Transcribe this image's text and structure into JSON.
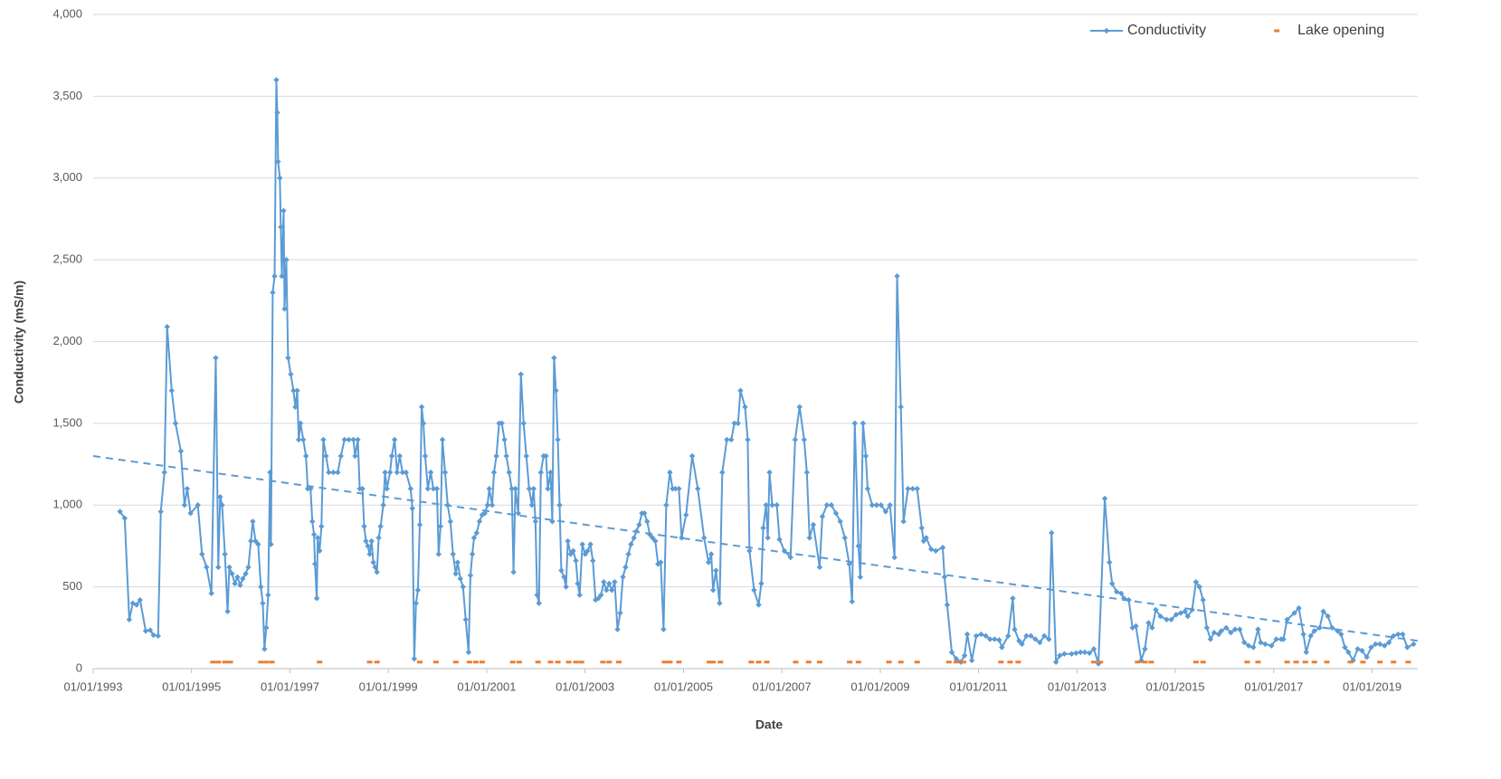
{
  "chart_data": {
    "type": "line",
    "x_label": "Date",
    "y_label": "Conductivity (mS/m)",
    "xlim": [
      "01/01/1993",
      "06/12/2019"
    ],
    "xticks": [
      "01/01/1993",
      "01/01/1995",
      "01/01/1997",
      "01/01/1999",
      "01/01/2001",
      "01/01/2003",
      "01/01/2005",
      "01/01/2007",
      "01/01/2009",
      "01/01/2011",
      "01/01/2013",
      "01/01/2015",
      "01/01/2017",
      "01/01/2019"
    ],
    "ylim": [
      0,
      4000
    ],
    "yticks": [
      0,
      500,
      {
        "value": 1000,
        "label": "1,000"
      },
      {
        "value": 1500,
        "label": "1,500"
      },
      {
        "value": 2000,
        "label": "2,000"
      },
      {
        "value": 2500,
        "label": "2,500"
      },
      {
        "value": 3000,
        "label": "3,000"
      },
      {
        "value": 3500,
        "label": "3,500"
      },
      {
        "value": 4000,
        "label": "4,000"
      }
    ],
    "grid": true,
    "legend": "top-right",
    "series": [
      {
        "name": "Conductivity",
        "color": "#5b9bd5",
        "line": true,
        "marker": "diamond",
        "x": [
          "19/07/1993",
          "23/08/1993",
          "26/09/1993",
          "22/10/1993",
          "19/11/1993",
          "15/12/1993",
          "26/01/1994",
          "28/02/1994",
          "25/03/1994",
          "28/04/1994",
          "18/05/1994",
          "14/06/1994",
          "04/07/1994",
          "07/08/1994",
          "04/09/1994",
          "14/10/1994",
          "10/11/1994",
          "30/11/1994",
          "25/12/1994",
          "17/02/1995",
          "20/03/1995",
          "23/04/1995",
          "29/05/1995",
          "30/06/1995",
          "19/07/1995",
          "02/08/1995",
          "16/08/1995",
          "06/09/1995",
          "26/09/1995",
          "09/10/1995",
          "29/10/1995",
          "19/11/1995",
          "08/12/1995",
          "28/12/1995",
          "17/01/1996",
          "07/02/1996",
          "27/02/1996",
          "17/03/1996",
          "31/03/1996",
          "20/04/1996",
          "10/05/1996",
          "30/05/1996",
          "13/06/1996",
          "26/06/1996",
          "09/07/1996",
          "23/07/1996",
          "06/08/1996",
          "13/08/1996",
          "26/08/1996",
          "09/09/1996",
          "22/09/1996",
          "29/09/1996",
          "05/10/1996",
          "18/10/1996",
          "25/10/1996",
          "02/11/1996",
          "15/11/1996",
          "22/11/1996",
          "05/12/1996",
          "18/12/1996",
          "07/01/1997",
          "27/01/1997",
          "10/02/1997",
          "24/02/1997",
          "07/03/1997",
          "20/03/1997",
          "10/04/1997",
          "30/04/1997",
          "13/05/1997",
          "03/06/1997",
          "16/06/1997",
          "29/06/1997",
          "06/07/1997",
          "19/07/1997",
          "26/07/1997",
          "09/08/1997",
          "23/08/1997",
          "06/09/1997",
          "26/09/1997",
          "16/10/1997",
          "19/11/1997",
          "22/12/1997",
          "14/01/1998",
          "10/02/1998",
          "14/03/1998",
          "17/04/1998",
          "30/04/1998",
          "20/05/1998",
          "03/06/1998",
          "23/06/1998",
          "06/07/1998",
          "19/07/1998",
          "02/08/1998",
          "16/08/1998",
          "30/08/1998",
          "12/09/1998",
          "26/09/1998",
          "09/10/1998",
          "22/10/1998",
          "05/11/1998",
          "25/11/1998",
          "08/12/1998",
          "22/12/1998",
          "14/01/1999",
          "27/01/1999",
          "17/02/1999",
          "07/03/1999",
          "27/03/1999",
          "17/04/1999",
          "13/05/1999",
          "16/06/1999",
          "29/06/1999",
          "13/07/1999",
          "26/07/1999",
          "09/08/1999",
          "23/08/1999",
          "06/09/1999",
          "19/09/1999",
          "02/10/1999",
          "22/10/1999",
          "12/11/1999",
          "02/12/1999",
          "28/12/1999",
          "10/01/2000",
          "24/01/2000",
          "07/02/2000",
          "27/02/2000",
          "17/03/2000",
          "06/04/2000",
          "26/04/2000",
          "16/05/2000",
          "30/05/2000",
          "19/06/2000",
          "09/07/2000",
          "29/07/2000",
          "19/08/2000",
          "02/09/2000",
          "16/09/2000",
          "29/09/2000",
          "18/10/2000",
          "08/11/2000",
          "28/11/2000",
          "18/12/2000",
          "07/01/2001",
          "20/01/2001",
          "10/02/2001",
          "24/02/2001",
          "14/03/2001",
          "03/04/2001",
          "23/04/2001",
          "13/05/2001",
          "27/05/2001",
          "16/06/2001",
          "06/07/2001",
          "19/07/2001",
          "02/08/2001",
          "23/08/2001",
          "12/09/2001",
          "02/10/2001",
          "22/10/2001",
          "12/11/2001",
          "02/12/2001",
          "15/12/2001",
          "29/12/2001",
          "10/01/2002",
          "24/01/2002",
          "07/02/2002",
          "27/02/2002",
          "17/03/2002",
          "31/03/2002",
          "20/04/2002",
          "03/05/2002",
          "16/05/2002",
          "30/05/2002",
          "13/06/2002",
          "26/06/2002",
          "09/07/2002",
          "29/07/2002",
          "13/08/2002",
          "26/08/2002",
          "16/09/2002",
          "05/10/2002",
          "25/10/2002",
          "08/11/2002",
          "22/11/2002",
          "12/12/2002",
          "02/01/2003",
          "20/01/2003",
          "10/02/2003",
          "28/02/2003",
          "20/03/2003",
          "10/04/2003",
          "30/04/2003",
          "20/05/2003",
          "09/06/2003",
          "29/06/2003",
          "19/07/2003",
          "09/08/2003",
          "30/08/2003",
          "19/09/2003",
          "09/10/2003",
          "29/10/2003",
          "19/11/2003",
          "08/12/2003",
          "30/12/2003",
          "17/01/2004",
          "07/02/2004",
          "27/02/2004",
          "17/03/2004",
          "06/04/2004",
          "26/04/2004",
          "16/05/2004",
          "06/06/2004",
          "26/06/2004",
          "16/07/2004",
          "06/08/2004",
          "26/08/2004",
          "22/09/2004",
          "12/10/2004",
          "02/11/2004",
          "28/11/2004",
          "18/12/2004",
          "20/01/2005",
          "07/03/2005",
          "17/04/2005",
          "03/06/2005",
          "06/07/2005",
          "26/07/2005",
          "09/08/2005",
          "30/08/2005",
          "26/09/2005",
          "16/10/2005",
          "19/11/2005",
          "22/12/2005",
          "14/01/2006",
          "10/02/2006",
          "28/02/2006",
          "03/04/2006",
          "23/04/2006",
          "06/05/2006",
          "09/06/2006",
          "13/07/2006",
          "02/08/2006",
          "16/08/2006",
          "06/09/2006",
          "19/09/2006",
          "02/10/2006",
          "22/10/2006",
          "25/11/2006",
          "15/12/2006",
          "20/01/2007",
          "07/03/2007",
          "10/04/2007",
          "13/05/2007",
          "16/06/2007",
          "06/07/2007",
          "26/07/2007",
          "23/08/2007",
          "09/10/2007",
          "29/10/2007",
          "02/12/2007",
          "04/01/2008",
          "07/02/2008",
          "10/03/2008",
          "13/04/2008",
          "16/05/2008",
          "06/06/2008",
          "26/06/2008",
          "23/07/2008",
          "06/08/2008",
          "26/08/2008",
          "16/09/2008",
          "29/09/2008",
          "02/11/2008",
          "05/12/2008",
          "07/01/2009",
          "10/02/2009",
          "14/03/2009",
          "17/04/2009",
          "06/05/2009",
          "03/06/2009",
          "23/06/2009",
          "26/07/2009",
          "30/08/2009",
          "02/10/2009",
          "05/11/2009",
          "19/11/2009",
          "08/12/2009",
          "14/01/2010",
          "17/02/2010",
          "10/04/2010",
          "23/04/2010",
          "13/05/2010",
          "16/06/2010",
          "19/07/2010",
          "23/08/2010",
          "19/09/2010",
          "09/10/2010",
          "12/11/2010",
          "15/12/2010",
          "20/01/2011",
          "24/02/2011",
          "27/03/2011",
          "30/04/2011",
          "03/06/2011",
          "23/06/2011",
          "09/08/2011",
          "12/09/2011",
          "26/09/2011",
          "29/10/2011",
          "19/11/2011",
          "22/12/2011",
          "24/01/2012",
          "27/02/2012",
          "31/03/2012",
          "03/05/2012",
          "06/06/2012",
          "26/06/2012",
          "29/07/2012",
          "26/08/2012",
          "29/09/2012",
          "22/11/2012",
          "25/12/2012",
          "27/01/2013",
          "28/02/2013",
          "03/04/2013",
          "06/05/2013",
          "09/06/2013",
          "26/07/2013",
          "30/08/2013",
          "19/09/2013",
          "22/10/2013",
          "25/11/2013",
          "15/12/2013",
          "20/01/2014",
          "17/02/2014",
          "14/03/2014",
          "23/04/2014",
          "20/05/2014",
          "16/06/2014",
          "13/07/2014",
          "09/08/2014",
          "12/09/2014",
          "29/10/2014",
          "02/12/2014",
          "07/01/2015",
          "10/02/2015",
          "14/03/2015",
          "03/04/2015",
          "06/05/2015",
          "03/06/2015",
          "29/06/2015",
          "26/07/2015",
          "23/08/2015",
          "19/09/2015",
          "16/10/2015",
          "19/11/2015",
          "08/12/2015",
          "14/01/2016",
          "17/02/2016",
          "20/03/2016",
          "23/04/2016",
          "27/05/2016",
          "29/06/2016",
          "02/08/2016",
          "06/09/2016",
          "26/09/2016",
          "29/10/2016",
          "15/12/2016",
          "20/01/2017",
          "24/02/2017",
          "14/03/2017",
          "10/04/2017",
          "03/06/2017",
          "06/07/2017",
          "09/08/2017",
          "30/08/2017",
          "02/10/2017",
          "29/10/2017",
          "08/12/2017",
          "04/01/2018",
          "07/02/2018",
          "10/03/2018",
          "20/04/2018",
          "16/05/2018",
          "13/06/2018",
          "09/07/2018",
          "13/08/2018",
          "16/09/2018",
          "18/10/2018",
          "22/11/2018",
          "25/12/2018",
          "27/01/2019",
          "28/02/2019",
          "03/04/2019",
          "06/05/2019",
          "09/06/2019",
          "13/07/2019",
          "16/08/2019",
          "19/09/2019",
          "05/11/2019"
        ],
        "values": [
          960,
          920,
          300,
          400,
          390,
          420,
          230,
          235,
          205,
          200,
          960,
          1200,
          2090,
          1700,
          1500,
          1330,
          1000,
          1100,
          950,
          1000,
          700,
          620,
          460,
          1900,
          620,
          1050,
          1000,
          700,
          350,
          620,
          580,
          520,
          560,
          510,
          550,
          580,
          620,
          780,
          900,
          780,
          760,
          500,
          400,
          120,
          250,
          450,
          1200,
          760,
          2300,
          2400,
          3600,
          3400,
          3100,
          3000,
          2700,
          2400,
          2800,
          2200,
          2500,
          1900,
          1800,
          1700,
          1600,
          1700,
          1400,
          1500,
          1400,
          1300,
          1100,
          1100,
          900,
          820,
          640,
          430,
          800,
          720,
          870,
          1400,
          1300,
          1200,
          1200,
          1200,
          1300,
          1400,
          1400,
          1400,
          1300,
          1400,
          1100,
          1100,
          870,
          780,
          750,
          700,
          780,
          650,
          620,
          590,
          800,
          870,
          1000,
          1200,
          1100,
          1200,
          1300,
          1400,
          1200,
          1300,
          1200,
          1200,
          1100,
          980,
          60,
          400,
          480,
          880,
          1600,
          1500,
          1300,
          1100,
          1200,
          1100,
          1100,
          700,
          870,
          1400,
          1200,
          1000,
          900,
          700,
          580,
          650,
          550,
          500,
          300,
          100,
          570,
          700,
          800,
          830,
          900,
          940,
          950,
          1000,
          1100,
          1000,
          1200,
          1300,
          1500,
          1500,
          1400,
          1300,
          1200,
          1100,
          590,
          1100,
          950,
          1800,
          1500,
          1300,
          1100,
          1000,
          1100,
          900,
          450,
          400,
          1200,
          1300,
          1300,
          1100,
          1200,
          900,
          1900,
          1700,
          1400,
          1000,
          600,
          560,
          500,
          780,
          700,
          720,
          660,
          520,
          450,
          760,
          700,
          720,
          760,
          660,
          420,
          430,
          450,
          530,
          480,
          520,
          480,
          530,
          240,
          340,
          560,
          620,
          700,
          760,
          800,
          840,
          880,
          950,
          950,
          900,
          820,
          800,
          780,
          640,
          650,
          240,
          1000,
          1200,
          1100,
          1100,
          1100,
          800,
          940,
          1300,
          1100,
          800,
          650,
          700,
          480,
          600,
          400,
          1200,
          1400,
          1400,
          1500,
          1500,
          1700,
          1600,
          1400,
          720,
          480,
          390,
          520,
          860,
          1000,
          800,
          1200,
          1000,
          1000,
          790,
          720,
          680,
          1400,
          1600,
          1400,
          1200,
          800,
          880,
          620,
          930,
          1000,
          1000,
          950,
          900,
          800,
          640,
          410,
          1500,
          750,
          560,
          1500,
          1300,
          1100,
          1000,
          1000,
          1000,
          960,
          1000,
          680,
          2400,
          1600,
          900,
          1100,
          1100,
          1100,
          860,
          780,
          800,
          730,
          720,
          740,
          560,
          390,
          100,
          60,
          40,
          80,
          210,
          50,
          200,
          210,
          200,
          180,
          180,
          175,
          130,
          200,
          430,
          240,
          170,
          150,
          200,
          200,
          180,
          160,
          200,
          180,
          830,
          40,
          80,
          90,
          90,
          95,
          100,
          100,
          95,
          120,
          30,
          1040,
          650,
          520,
          470,
          460,
          430,
          420,
          250,
          260,
          50,
          120,
          280,
          250,
          360,
          320,
          300,
          300,
          330,
          340,
          350,
          320,
          360,
          530,
          500,
          420,
          250,
          180,
          220,
          210,
          230,
          250,
          220,
          240,
          240,
          160,
          140,
          130,
          240,
          160,
          150,
          140,
          180,
          180,
          180,
          300,
          340,
          370,
          210,
          100,
          200,
          230,
          250,
          350,
          320,
          250,
          230,
          210,
          130,
          100,
          50,
          120,
          110,
          70,
          130,
          150,
          150,
          140,
          160,
          200,
          210,
          210,
          130,
          150
        ]
      },
      {
        "name": "Lake opening",
        "color": "#ed7d31",
        "line": false,
        "marker": "dash",
        "x": [
          "09/06/1995",
          "19/07/1995",
          "06/09/1995",
          "16/10/1995",
          "30/05/1996",
          "09/07/1996",
          "20/08/1996",
          "09/08/1997",
          "16/08/1998",
          "09/10/1998",
          "23/08/1999",
          "21/12/1999",
          "16/05/2000",
          "26/08/2000",
          "12/10/2000",
          "28/11/2000",
          "13/07/2001",
          "30/08/2001",
          "17/01/2002",
          "20/04/2002",
          "13/06/2002",
          "02/09/2002",
          "25/10/2002",
          "06/12/2002",
          "14/05/2003",
          "29/06/2003",
          "09/09/2003",
          "13/08/2004",
          "22/09/2004",
          "28/11/2004",
          "12/07/2005",
          "09/08/2005",
          "02/10/2005",
          "19/05/2006",
          "13/07/2006",
          "12/09/2006",
          "14/04/2007",
          "19/07/2007",
          "09/10/2007",
          "19/05/2008",
          "23/07/2008",
          "07/03/2009",
          "03/06/2009",
          "02/10/2009",
          "26/05/2010",
          "19/07/2010",
          "12/09/2010",
          "16/06/2011",
          "23/08/2011",
          "22/10/2011",
          "06/05/2013",
          "23/06/2013",
          "27/03/2014",
          "20/05/2014",
          "06/07/2014",
          "03/06/2015",
          "26/07/2015",
          "17/06/2016",
          "06/09/2016",
          "10/04/2017",
          "16/06/2017",
          "23/08/2017",
          "29/10/2017",
          "30/01/2018",
          "23/07/2018",
          "25/10/2018",
          "28/02/2019",
          "09/06/2019",
          "26/09/2019"
        ],
        "values": [
          40,
          40,
          40,
          40,
          40,
          40,
          40,
          40,
          40,
          40,
          40,
          40,
          40,
          40,
          40,
          40,
          40,
          40,
          40,
          40,
          40,
          40,
          40,
          40,
          40,
          40,
          40,
          40,
          40,
          40,
          40,
          40,
          40,
          40,
          40,
          40,
          40,
          40,
          40,
          40,
          40,
          40,
          40,
          40,
          40,
          40,
          40,
          40,
          40,
          40,
          40,
          40,
          40,
          40,
          40,
          40,
          40,
          40,
          40,
          40,
          40,
          40,
          40,
          40,
          40,
          40,
          40,
          40,
          40
        ]
      }
    ],
    "trendline": {
      "color": "#5b9bd5",
      "x": [
        "01/01/1993",
        "06/12/2019"
      ],
      "values": [
        1300,
        170
      ]
    }
  }
}
